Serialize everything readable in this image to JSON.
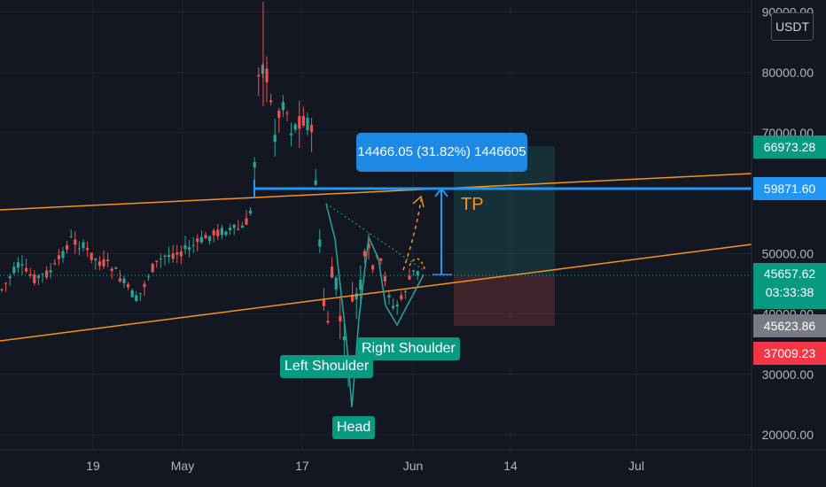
{
  "chart_data": {
    "type": "candlestick",
    "symbol_currency": "USDT",
    "y_ticks": [
      "20000.00",
      "30000.00",
      "40000.00",
      "50000.00",
      "70000.00",
      "80000.00",
      "90000.00"
    ],
    "x_ticks": [
      "19",
      "May",
      "17",
      "Jun",
      "14",
      "Jul"
    ],
    "ylim": [
      17500,
      92000
    ],
    "price_labels": {
      "target": "66973.28",
      "tp_line": "59871.60",
      "last": "45657.62",
      "countdown": "03:33:38",
      "prev_close": "45623.86",
      "stop": "37009.23"
    },
    "annotations": {
      "left_shoulder": "Left Shoulder",
      "head": "Head",
      "right_shoulder": "Right Shoulder",
      "tp": "TP",
      "measure": "14466.05 (31.82%) 1446605"
    },
    "colors": {
      "up": "#26a69a",
      "down": "#ef5350",
      "trendline": "#f7931a",
      "tp_line": "#2196f3",
      "annotation": "#089981"
    }
  }
}
